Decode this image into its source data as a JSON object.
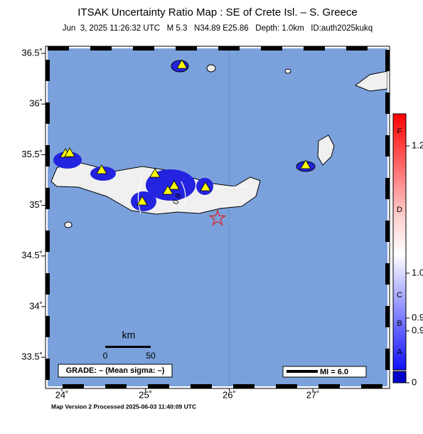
{
  "header": {
    "title": "ITSAK Uncertainty Ratio Map : SE of Crete Isl. – S. Greece",
    "subtitle": "Jun  3, 2025 11:26:32 UTC   M 5.3   N34.89 E25.86   Depth: 1.0km   ID:auth2025kukq"
  },
  "map": {
    "lat_labels": [
      "36.5˚",
      "36˚",
      "35.5˚",
      "35˚",
      "34.5˚",
      "34˚",
      "33.5˚"
    ],
    "lon_labels": [
      "24˚",
      "25˚",
      "26˚",
      "27˚"
    ],
    "contour_label": "0.8",
    "scale": {
      "unit": "km",
      "labels": [
        "0",
        "50"
      ]
    },
    "grade": "GRADE: – (Mean sigma: –)",
    "legend": "MI = 6.0"
  },
  "colorbar": {
    "grades": [
      "F",
      "D",
      "C",
      "B",
      "A"
    ],
    "labels": [
      "1.2",
      "1.0",
      "0.9",
      "0.9",
      "0"
    ]
  },
  "footer": "Map Version 2 Processed 2025-06-03 11:40:09 UTC"
}
